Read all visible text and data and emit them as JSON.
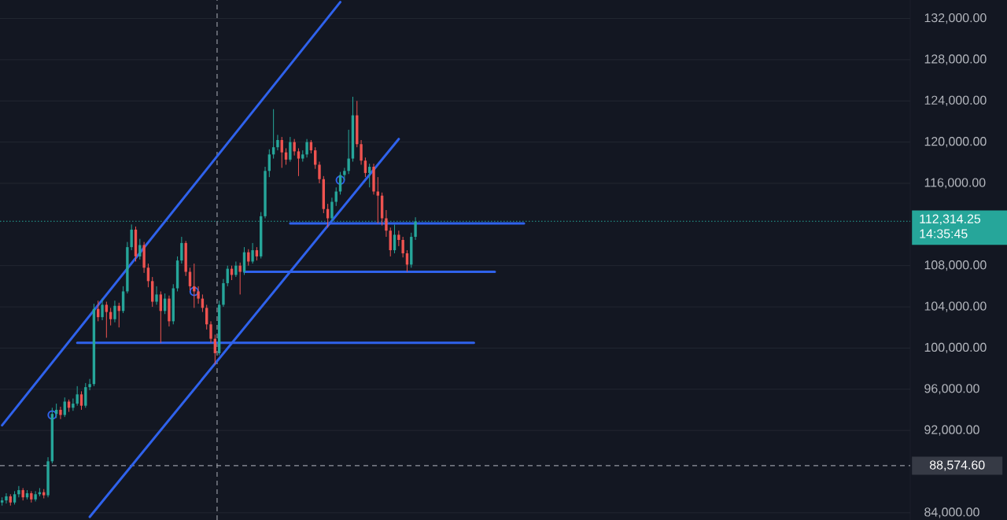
{
  "chart_data": {
    "type": "candlestick",
    "categories": [
      null,
      null,
      null,
      null,
      null,
      null,
      null,
      null,
      null,
      null,
      null,
      null,
      null,
      null,
      null,
      null,
      null,
      null,
      null,
      null,
      null,
      null,
      null,
      null,
      null,
      null,
      null,
      null,
      null,
      null,
      null,
      null,
      null,
      null,
      null,
      null,
      null,
      null,
      null,
      null,
      null,
      null,
      null,
      null,
      null,
      null,
      null,
      null,
      null,
      null,
      null,
      null,
      null,
      null,
      null,
      null,
      null,
      null,
      null,
      null,
      null,
      null,
      null,
      null,
      null,
      null,
      null,
      null,
      null,
      null,
      null,
      null,
      null,
      null,
      null,
      null,
      null,
      null,
      null,
      null,
      null,
      null,
      null,
      null,
      null,
      null,
      null,
      null,
      null,
      null,
      null,
      null,
      null,
      null,
      null,
      null,
      null,
      null,
      null,
      null,
      null,
      null,
      null,
      null,
      null,
      null,
      null,
      null,
      null,
      null,
      null,
      null,
      null,
      null,
      null,
      null,
      null,
      null,
      null,
      null,
      null,
      null,
      null,
      null,
      null,
      null,
      null,
      null,
      null,
      null,
      null,
      null,
      null,
      null,
      null,
      null,
      null,
      null,
      null,
      null,
      null,
      null,
      null,
      null,
      null,
      null,
      null,
      null,
      null,
      null,
      null,
      null,
      null,
      null,
      null,
      null,
      null,
      null,
      null,
      null,
      null,
      null,
      null,
      null,
      null,
      null,
      null,
      null,
      null,
      null,
      null,
      null,
      null,
      null,
      null,
      null,
      null,
      null,
      null,
      null,
      null,
      null,
      null,
      null,
      null,
      null,
      null,
      null,
      null,
      null,
      null,
      null,
      null,
      null,
      null,
      null,
      null,
      null,
      null,
      null,
      null,
      null,
      null,
      null,
      null,
      null,
      null,
      null,
      null,
      null,
      null,
      null,
      null,
      null,
      null,
      null,
      null,
      null
    ],
    "ohlc": [
      [
        85000,
        85500,
        84700,
        85200
      ],
      [
        85200,
        85900,
        84900,
        85600
      ],
      [
        85600,
        85800,
        84700,
        85000
      ],
      [
        85000,
        86100,
        84800,
        85800
      ],
      [
        85800,
        86600,
        85500,
        86200
      ],
      [
        86200,
        86400,
        85200,
        85500
      ],
      [
        85500,
        86200,
        85300,
        85900
      ],
      [
        85900,
        86100,
        85000,
        85300
      ],
      [
        85300,
        86100,
        85100,
        85800
      ],
      [
        85800,
        86400,
        85600,
        86000
      ],
      [
        86000,
        86300,
        85400,
        85700
      ],
      [
        85700,
        89400,
        85500,
        89000
      ],
      [
        89000,
        94200,
        88800,
        93600
      ],
      [
        93600,
        94600,
        93200,
        94000
      ],
      [
        94000,
        94300,
        93100,
        93500
      ],
      [
        93500,
        95200,
        93300,
        94800
      ],
      [
        94800,
        95000,
        93800,
        94200
      ],
      [
        94200,
        95100,
        93900,
        94600
      ],
      [
        94600,
        96300,
        94400,
        95500
      ],
      [
        95500,
        95800,
        94000,
        94400
      ],
      [
        94400,
        96600,
        94200,
        96200
      ],
      [
        96200,
        97000,
        95900,
        96500
      ],
      [
        96500,
        104300,
        96300,
        103800
      ],
      [
        103800,
        104600,
        102600,
        103000
      ],
      [
        103000,
        104800,
        102700,
        104200
      ],
      [
        104200,
        104500,
        101000,
        103500
      ],
      [
        103500,
        103900,
        102200,
        102800
      ],
      [
        102800,
        104600,
        102500,
        104100
      ],
      [
        104100,
        104400,
        102000,
        103600
      ],
      [
        103600,
        106000,
        103400,
        105500
      ],
      [
        105500,
        110300,
        105300,
        109800
      ],
      [
        109800,
        112000,
        109500,
        111500
      ],
      [
        111500,
        111800,
        108400,
        108900
      ],
      [
        108900,
        110600,
        108600,
        110000
      ],
      [
        110000,
        110300,
        107300,
        107800
      ],
      [
        107800,
        108200,
        105900,
        106500
      ],
      [
        106500,
        106900,
        104000,
        104500
      ],
      [
        104500,
        106000,
        104200,
        105200
      ],
      [
        105200,
        105500,
        100500,
        103600
      ],
      [
        103600,
        105300,
        103300,
        104800
      ],
      [
        104800,
        105100,
        102100,
        102600
      ],
      [
        102600,
        106200,
        102300,
        105800
      ],
      [
        105800,
        108900,
        105500,
        108500
      ],
      [
        108500,
        110800,
        108200,
        110200
      ],
      [
        110200,
        110400,
        107000,
        107400
      ],
      [
        107400,
        107800,
        105600,
        106000
      ],
      [
        106000,
        108200,
        103900,
        105500
      ],
      [
        105500,
        106000,
        104300,
        104800
      ],
      [
        104800,
        105200,
        103500,
        103900
      ],
      [
        103900,
        104200,
        101800,
        102300
      ],
      [
        102300,
        102600,
        100500,
        100900
      ],
      [
        100900,
        101300,
        98400,
        99500
      ],
      [
        99500,
        104600,
        99300,
        104200
      ],
      [
        104200,
        106700,
        104000,
        106300
      ],
      [
        106300,
        108000,
        106000,
        107700
      ],
      [
        107700,
        108000,
        106600,
        107100
      ],
      [
        107100,
        108400,
        106900,
        108000
      ],
      [
        108000,
        108300,
        105200,
        107400
      ],
      [
        107400,
        109800,
        107100,
        109300
      ],
      [
        109300,
        109600,
        108000,
        108400
      ],
      [
        108400,
        110200,
        108200,
        109500
      ],
      [
        109500,
        109800,
        108500,
        108900
      ],
      [
        108900,
        113200,
        108700,
        112800
      ],
      [
        112800,
        117600,
        112600,
        117200
      ],
      [
        117200,
        119300,
        116600,
        118800
      ],
      [
        118800,
        123200,
        118400,
        119500
      ],
      [
        119500,
        120700,
        119200,
        120200
      ],
      [
        120200,
        120500,
        117500,
        119000
      ],
      [
        119000,
        119400,
        117800,
        118300
      ],
      [
        118300,
        120500,
        118100,
        120000
      ],
      [
        120000,
        120300,
        118700,
        119100
      ],
      [
        119100,
        119400,
        116700,
        118400
      ],
      [
        118400,
        119200,
        118100,
        118800
      ],
      [
        118800,
        120300,
        118500,
        120000
      ],
      [
        120000,
        120200,
        118900,
        119200
      ],
      [
        119200,
        119500,
        117400,
        117800
      ],
      [
        117800,
        118100,
        116000,
        116400
      ],
      [
        116400,
        116700,
        113100,
        113500
      ],
      [
        113500,
        114000,
        111700,
        112600
      ],
      [
        112600,
        114600,
        112300,
        114200
      ],
      [
        114200,
        115600,
        113800,
        115200
      ],
      [
        115200,
        117100,
        114900,
        116800
      ],
      [
        116800,
        117500,
        116300,
        117200
      ],
      [
        117200,
        121200,
        116900,
        118400
      ],
      [
        118400,
        124400,
        118100,
        122600
      ],
      [
        122600,
        124000,
        119500,
        119800
      ],
      [
        119800,
        120200,
        117800,
        118200
      ],
      [
        118200,
        118500,
        116600,
        117000
      ],
      [
        117000,
        117900,
        115600,
        117600
      ],
      [
        117600,
        117900,
        114900,
        115200
      ],
      [
        115200,
        116600,
        112100,
        114800
      ],
      [
        114800,
        115100,
        111900,
        112600
      ],
      [
        112600,
        113400,
        110800,
        111400
      ],
      [
        111400,
        111700,
        108900,
        109500
      ],
      [
        109500,
        112000,
        109200,
        111000
      ],
      [
        111000,
        111400,
        109900,
        110500
      ],
      [
        110500,
        110800,
        108800,
        109200
      ],
      [
        109200,
        109500,
        107400,
        108100
      ],
      [
        108100,
        111200,
        107800,
        110800
      ],
      [
        110800,
        112700,
        110500,
        112300
      ],
      null,
      null,
      null,
      null,
      null,
      null,
      null,
      null,
      null,
      null,
      null,
      null,
      null,
      null,
      null,
      null,
      null,
      null,
      null,
      null,
      null,
      null,
      null,
      null,
      null,
      null,
      null,
      null,
      null,
      null,
      null,
      null,
      null,
      null,
      null,
      null,
      null,
      null,
      null,
      null,
      null,
      null,
      null,
      null,
      null,
      null,
      null,
      null,
      null,
      null,
      null,
      null,
      null,
      null,
      null,
      null,
      null,
      null,
      null,
      null,
      null,
      null,
      null,
      null,
      null,
      null,
      null,
      null,
      null,
      null,
      null,
      null,
      null,
      null,
      null,
      null,
      null,
      null,
      null,
      null,
      null,
      null,
      null,
      null,
      null,
      null,
      null,
      null,
      null,
      null,
      null,
      null,
      null,
      null,
      null,
      null,
      null,
      null,
      null,
      null,
      null,
      null,
      null,
      null,
      null,
      null,
      null,
      null,
      null,
      null,
      null,
      null,
      null,
      null,
      null,
      null,
      null,
      null
    ],
    "ylim": [
      83300,
      133800
    ],
    "yticks": [
      {
        "value": 84000,
        "label": "84,000.00"
      },
      {
        "value": 92000,
        "label": "92,000.00"
      },
      {
        "value": 96000,
        "label": "96,000.00"
      },
      {
        "value": 100000,
        "label": "100,000.00"
      },
      {
        "value": 104000,
        "label": "104,000.00"
      },
      {
        "value": 108000,
        "label": "108,000.00"
      },
      {
        "value": 116000,
        "label": "116,000.00"
      },
      {
        "value": 120000,
        "label": "120,000.00"
      },
      {
        "value": 124000,
        "label": "124,000.00"
      },
      {
        "value": 128000,
        "label": "128,000.00"
      },
      {
        "value": 132000,
        "label": "132,000.00"
      }
    ],
    "tick_labels": "y",
    "grid": "y",
    "series": [
      {
        "type": "line",
        "color": "#2f62ec",
        "values": [
          92500,
          null,
          null,
          null,
          null,
          null,
          null,
          null,
          null,
          null,
          null,
          null,
          null,
          null,
          null,
          null,
          null,
          null,
          null,
          null,
          null,
          null,
          null,
          null,
          null,
          null,
          null,
          null,
          null,
          null,
          null,
          null,
          null,
          null,
          null,
          null,
          null,
          null,
          null,
          null,
          null,
          null,
          null,
          null,
          null,
          null,
          null,
          null,
          null,
          null,
          null,
          null,
          null,
          null,
          null,
          null,
          null,
          null,
          null,
          null,
          null,
          null,
          null,
          null,
          null,
          null,
          null,
          null,
          null,
          null,
          null,
          null,
          null,
          null,
          null,
          null,
          null,
          null,
          null,
          null,
          null,
          133600,
          null,
          null,
          null,
          null,
          null,
          null,
          null,
          null,
          null,
          null,
          null,
          null,
          null,
          null,
          null,
          null,
          null,
          null,
          null,
          null,
          null,
          null,
          null,
          null,
          null,
          null,
          null,
          null,
          null,
          null,
          null,
          null,
          null,
          null,
          null,
          null,
          null,
          null,
          null,
          null,
          null,
          null,
          null,
          null,
          null,
          null,
          null,
          null,
          null,
          null,
          null,
          null,
          null,
          null,
          null,
          null,
          null,
          null,
          null,
          null,
          null,
          null,
          null,
          null,
          null,
          null,
          null,
          null,
          null,
          null,
          null,
          null,
          null,
          null,
          null,
          null,
          null,
          null,
          null,
          null,
          null,
          null,
          null,
          null,
          null,
          null,
          null,
          null,
          null,
          null,
          null,
          null,
          null,
          null,
          null,
          null,
          null,
          null,
          null,
          null,
          null,
          null,
          null,
          null,
          null,
          null,
          null,
          null,
          null,
          null,
          null,
          null,
          null,
          null,
          null,
          null,
          null,
          null,
          null,
          null,
          null,
          null,
          null,
          null,
          null,
          null,
          null,
          null,
          null,
          null,
          null,
          null,
          null,
          null,
          null,
          null
        ]
      },
      {
        "type": "line",
        "color": "#2f62ec",
        "values": [
          null,
          null,
          null,
          null,
          null,
          null,
          null,
          null,
          null,
          null,
          null,
          null,
          null,
          null,
          null,
          null,
          null,
          null,
          null,
          null,
          null,
          83600,
          null,
          null,
          null,
          null,
          null,
          null,
          null,
          null,
          null,
          null,
          null,
          null,
          null,
          null,
          null,
          null,
          null,
          null,
          null,
          null,
          null,
          null,
          null,
          null,
          null,
          null,
          null,
          null,
          null,
          null,
          null,
          null,
          null,
          null,
          null,
          null,
          null,
          null,
          null,
          null,
          null,
          null,
          null,
          null,
          null,
          null,
          null,
          null,
          null,
          null,
          null,
          null,
          null,
          null,
          null,
          null,
          null,
          null,
          null,
          null,
          null,
          null,
          null,
          null,
          null,
          null,
          null,
          null,
          null,
          null,
          null,
          null,
          null,
          120300,
          null,
          null,
          null,
          null,
          null,
          null,
          null,
          null,
          null,
          null,
          null,
          null,
          null,
          null,
          null,
          null,
          null,
          null,
          null,
          null,
          null,
          null,
          null,
          null,
          null,
          null,
          null,
          null,
          null,
          null,
          null,
          null,
          null,
          null,
          null,
          null,
          null,
          null,
          null,
          null,
          null,
          null,
          null,
          null,
          null,
          null,
          null,
          null,
          null,
          null,
          null,
          null,
          null,
          null,
          null,
          null,
          null,
          null,
          null,
          null,
          null,
          null,
          null,
          null,
          null,
          null,
          null,
          null,
          null,
          null,
          null,
          null,
          null,
          null,
          null,
          null,
          null,
          null,
          null,
          null,
          null,
          null,
          null,
          null,
          null,
          null,
          null,
          null,
          null,
          null,
          null,
          null,
          null,
          null,
          null,
          null,
          null,
          null,
          null,
          null,
          null,
          null,
          null,
          null,
          null,
          null,
          null,
          null,
          null,
          null,
          null,
          null,
          null,
          null,
          null,
          null,
          null,
          null,
          null,
          null,
          null,
          null
        ]
      },
      {
        "type": "line",
        "color": "#2f62ec",
        "values": [
          null,
          null,
          null,
          null,
          null,
          null,
          null,
          null,
          null,
          null,
          null,
          null,
          null,
          null,
          null,
          null,
          null,
          null,
          100500,
          null,
          null,
          null,
          null,
          null,
          null,
          null,
          null,
          null,
          null,
          null,
          null,
          null,
          null,
          null,
          null,
          null,
          null,
          null,
          null,
          null,
          null,
          null,
          null,
          null,
          null,
          null,
          null,
          null,
          null,
          null,
          null,
          null,
          null,
          null,
          null,
          null,
          null,
          null,
          null,
          null,
          null,
          null,
          null,
          null,
          null,
          null,
          null,
          null,
          null,
          null,
          null,
          null,
          null,
          null,
          null,
          null,
          null,
          null,
          null,
          null,
          null,
          null,
          null,
          null,
          null,
          null,
          null,
          null,
          null,
          null,
          null,
          null,
          null,
          null,
          null,
          null,
          null,
          null,
          null,
          null,
          null,
          null,
          null,
          null,
          null,
          null,
          null,
          null,
          null,
          null,
          null,
          null,
          null,
          100500,
          null,
          null,
          null,
          null,
          null,
          null,
          null,
          null,
          null,
          null,
          null,
          null,
          null,
          null,
          null,
          null,
          null,
          null,
          null,
          null,
          null,
          null,
          null,
          null,
          null,
          null,
          null,
          null,
          null,
          null,
          null,
          null,
          null,
          null,
          null,
          null,
          null,
          null,
          null,
          null,
          null,
          null,
          null,
          null,
          null,
          null,
          null,
          null,
          null,
          null,
          null,
          null,
          null,
          null,
          null,
          null,
          null,
          null,
          null,
          null,
          null,
          null,
          null,
          null,
          null,
          null,
          null,
          null,
          null,
          null,
          null,
          null,
          null,
          null,
          null,
          null,
          null,
          null,
          null,
          null,
          null,
          null,
          null,
          null,
          null,
          null,
          null,
          null,
          null,
          null,
          null,
          null,
          null,
          null,
          null,
          null,
          null,
          null,
          null,
          null,
          null,
          null,
          null,
          null
        ]
      },
      {
        "type": "line",
        "color": "#2f62ec",
        "values": [
          null,
          null,
          null,
          null,
          null,
          null,
          null,
          null,
          null,
          null,
          null,
          null,
          null,
          null,
          null,
          null,
          null,
          null,
          null,
          null,
          null,
          null,
          null,
          null,
          null,
          null,
          null,
          null,
          null,
          null,
          null,
          null,
          null,
          null,
          null,
          null,
          null,
          null,
          null,
          null,
          null,
          null,
          null,
          null,
          null,
          null,
          null,
          null,
          null,
          null,
          null,
          null,
          null,
          null,
          null,
          null,
          null,
          null,
          107400,
          null,
          null,
          null,
          null,
          null,
          null,
          null,
          null,
          null,
          null,
          null,
          null,
          null,
          null,
          null,
          null,
          null,
          null,
          null,
          null,
          null,
          null,
          null,
          null,
          null,
          null,
          null,
          null,
          null,
          null,
          null,
          null,
          null,
          null,
          null,
          null,
          null,
          null,
          null,
          null,
          null,
          null,
          null,
          null,
          null,
          null,
          null,
          null,
          null,
          null,
          null,
          null,
          null,
          null,
          null,
          null,
          null,
          null,
          null,
          107400,
          null,
          null,
          null,
          null,
          null,
          null,
          null,
          null,
          null,
          null,
          null,
          null,
          null,
          null,
          null,
          null,
          null,
          null,
          null,
          null,
          null,
          null,
          null,
          null,
          null,
          null,
          null,
          null,
          null,
          null,
          null,
          null,
          null,
          null,
          null,
          null,
          null,
          null,
          null,
          null,
          null,
          null,
          null,
          null,
          null,
          null,
          null,
          null,
          null,
          null,
          null,
          null,
          null,
          null,
          null,
          null,
          null,
          null,
          null,
          null,
          null,
          null,
          null,
          null,
          null,
          null,
          null,
          null,
          null,
          null,
          null,
          null,
          null,
          null,
          null,
          null,
          null,
          null,
          null,
          null,
          null,
          null,
          null,
          null,
          null,
          null,
          null,
          null,
          null,
          null,
          null,
          null,
          null,
          null,
          null,
          null,
          null,
          null,
          null
        ]
      },
      {
        "type": "line",
        "color": "#2f62ec",
        "values": [
          null,
          null,
          null,
          null,
          null,
          null,
          null,
          null,
          null,
          null,
          null,
          null,
          null,
          null,
          null,
          null,
          null,
          null,
          null,
          null,
          null,
          null,
          null,
          null,
          null,
          null,
          null,
          null,
          null,
          null,
          null,
          null,
          null,
          null,
          null,
          null,
          null,
          null,
          null,
          null,
          null,
          null,
          null,
          null,
          null,
          null,
          null,
          null,
          null,
          null,
          null,
          null,
          null,
          null,
          null,
          null,
          null,
          null,
          null,
          null,
          null,
          null,
          null,
          null,
          null,
          null,
          null,
          null,
          null,
          112100,
          null,
          null,
          null,
          null,
          null,
          null,
          null,
          null,
          null,
          null,
          null,
          null,
          null,
          null,
          null,
          null,
          null,
          null,
          null,
          null,
          null,
          null,
          null,
          null,
          null,
          null,
          null,
          null,
          null,
          null,
          null,
          null,
          null,
          null,
          null,
          null,
          null,
          null,
          null,
          null,
          null,
          null,
          null,
          null,
          null,
          null,
          null,
          null,
          null,
          null,
          null,
          null,
          null,
          null,
          null,
          112100,
          null,
          null,
          null,
          null,
          null,
          null,
          null,
          null,
          null,
          null,
          null,
          null,
          null,
          null,
          null,
          null,
          null,
          null,
          null,
          null,
          null,
          null,
          null,
          null,
          null,
          null,
          null,
          null,
          null,
          null,
          null,
          null,
          null,
          null,
          null,
          null,
          null,
          null,
          null,
          null,
          null,
          null,
          null,
          null,
          null,
          null,
          null,
          null,
          null,
          null,
          null,
          null,
          null,
          null,
          null,
          null,
          null,
          null,
          null,
          null,
          null,
          null,
          null,
          null,
          null,
          null,
          null,
          null,
          null,
          null,
          null,
          null,
          null,
          null,
          null,
          null,
          null,
          null,
          null,
          null,
          null,
          null,
          null,
          null,
          null,
          null,
          null,
          null,
          null,
          null,
          null,
          null
        ]
      },
      {
        "type": "scatter",
        "color": "#2f62ec",
        "marker": "circle",
        "values": [
          null,
          null,
          null,
          null,
          null,
          null,
          null,
          null,
          null,
          null,
          null,
          null,
          93500,
          null,
          null,
          null,
          null,
          null,
          null,
          null,
          null,
          null,
          null,
          null,
          null,
          null,
          null,
          null,
          null,
          null,
          null,
          null,
          null,
          null,
          null,
          null,
          null,
          null,
          null,
          null,
          null,
          null,
          null,
          null,
          null,
          null,
          105500,
          null,
          null,
          null,
          null,
          null,
          null,
          null,
          null,
          null,
          null,
          null,
          null,
          null,
          null,
          null,
          null,
          null,
          null,
          null,
          null,
          null,
          null,
          null,
          null,
          null,
          null,
          null,
          null,
          null,
          null,
          null,
          null,
          null,
          null,
          116300,
          null,
          null,
          null,
          null,
          null,
          null,
          null,
          null,
          null,
          null,
          null,
          null,
          null,
          null,
          null,
          null,
          null,
          null,
          null,
          null,
          null,
          null,
          null,
          null,
          null,
          null,
          null,
          null,
          null,
          null,
          null,
          null,
          null,
          null,
          null,
          null,
          null,
          null,
          null,
          null,
          null,
          null,
          null,
          null,
          null,
          null,
          null,
          null,
          null,
          null,
          null,
          null,
          null,
          null,
          null,
          null,
          null,
          null,
          null,
          null,
          null,
          null,
          null,
          null,
          null,
          null,
          null,
          null,
          null,
          null,
          null,
          null,
          null,
          null,
          null,
          null,
          null,
          null,
          null,
          null,
          null,
          null,
          null,
          null,
          null,
          null,
          null,
          null,
          null,
          null,
          null,
          null,
          null,
          null,
          null,
          null,
          null,
          null,
          null,
          null,
          null,
          null,
          null,
          null,
          null,
          null,
          null,
          null,
          null,
          null,
          null,
          null,
          null,
          null,
          null,
          null,
          null,
          null,
          null,
          null,
          null,
          null,
          null,
          null,
          null,
          null,
          null,
          null,
          null,
          null,
          null,
          null,
          null,
          null,
          null,
          null
        ]
      }
    ],
    "ref_lines": [
      {
        "axis": "y",
        "value": 112314.25,
        "label": "112,314.25",
        "color": "#26a69a",
        "line_style": "dotted"
      },
      {
        "axis": "y",
        "value": 88574.6,
        "label": "88,574.60",
        "color": "#9598a1",
        "line_style": "dashed"
      }
    ],
    "annotations": [
      "14:35:45"
    ]
  }
}
